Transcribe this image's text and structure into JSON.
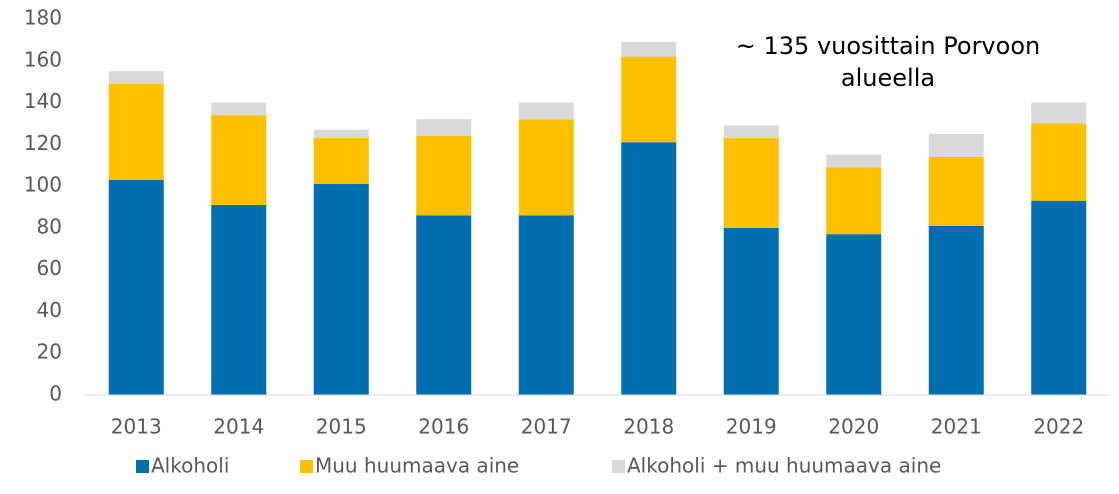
{
  "chart_data": {
    "type": "stacked_bar",
    "annotation": "~ 135 vuosittain Porvoon alueella",
    "categories": [
      "2013",
      "2014",
      "2015",
      "2016",
      "2017",
      "2018",
      "2019",
      "2020",
      "2021",
      "2022"
    ],
    "series": [
      {
        "name": "Alkoholi",
        "color": "#006eaf",
        "values": [
          103,
          91,
          101,
          86,
          86,
          121,
          80,
          77,
          81,
          93
        ]
      },
      {
        "name": "Muu huumaava aine",
        "color": "#ffc000",
        "values": [
          46,
          43,
          22,
          38,
          46,
          41,
          43,
          32,
          33,
          37
        ]
      },
      {
        "name": "Alkoholi + muu huumaava aine",
        "color": "#d9d9d9",
        "values": [
          6,
          6,
          4,
          8,
          8,
          7,
          6,
          6,
          11,
          10
        ]
      }
    ],
    "ylim": [
      0,
      180
    ],
    "yticks": [
      0,
      20,
      40,
      60,
      80,
      100,
      120,
      140,
      160,
      180
    ],
    "grid": false,
    "legend": "bottom"
  }
}
